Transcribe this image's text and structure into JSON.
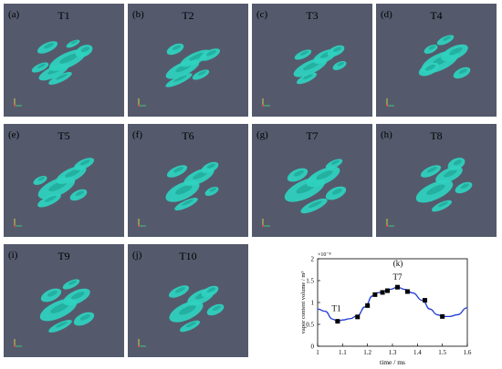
{
  "panels": [
    {
      "label": "(a)",
      "title": "T1"
    },
    {
      "label": "(b)",
      "title": "T2"
    },
    {
      "label": "(c)",
      "title": "T3"
    },
    {
      "label": "(d)",
      "title": "T4"
    },
    {
      "label": "(e)",
      "title": "T5"
    },
    {
      "label": "(f)",
      "title": "T6"
    },
    {
      "label": "(g)",
      "title": "T7"
    },
    {
      "label": "(h)",
      "title": "T8"
    },
    {
      "label": "(i)",
      "title": "T9"
    },
    {
      "label": "(j)",
      "title": "T10"
    }
  ],
  "colors": {
    "panel_bg": "#545a6c",
    "cavity": "#2fd1bf",
    "curve": "#1f3bd6",
    "marker": "#000000"
  },
  "chart_data": {
    "type": "line",
    "label": "(k)",
    "xlabel": "time / ms",
    "ylabel": "vapor content volume / m³",
    "y_exponent": "×10⁻⁸",
    "xlim": [
      1,
      1.6
    ],
    "ylim": [
      0,
      2
    ],
    "xticks": [
      "1",
      "1.1",
      "1.2",
      "1.3",
      "1.4",
      "1.5",
      "1.6"
    ],
    "yticks": [
      "0",
      "0.5",
      "1",
      "1.5",
      "2"
    ],
    "curve": {
      "x": [
        1.0,
        1.03,
        1.06,
        1.08,
        1.1,
        1.13,
        1.16,
        1.19,
        1.22,
        1.24,
        1.27,
        1.29,
        1.32,
        1.35,
        1.38,
        1.42,
        1.45,
        1.48,
        1.5,
        1.53,
        1.56,
        1.6
      ],
      "y": [
        0.85,
        0.8,
        0.62,
        0.57,
        0.6,
        0.63,
        0.7,
        0.9,
        1.15,
        1.22,
        1.27,
        1.3,
        1.35,
        1.3,
        1.22,
        1.05,
        0.85,
        0.72,
        0.68,
        0.68,
        0.72,
        0.88
      ]
    },
    "markers": {
      "x": [
        1.08,
        1.16,
        1.2,
        1.23,
        1.26,
        1.28,
        1.32,
        1.36,
        1.43,
        1.5
      ],
      "y": [
        0.57,
        0.67,
        0.93,
        1.18,
        1.23,
        1.27,
        1.35,
        1.25,
        1.05,
        0.68
      ]
    },
    "annotations": [
      {
        "text": "T1",
        "x": 1.075,
        "y": 0.8
      },
      {
        "text": "T7",
        "x": 1.32,
        "y": 1.52
      }
    ]
  }
}
